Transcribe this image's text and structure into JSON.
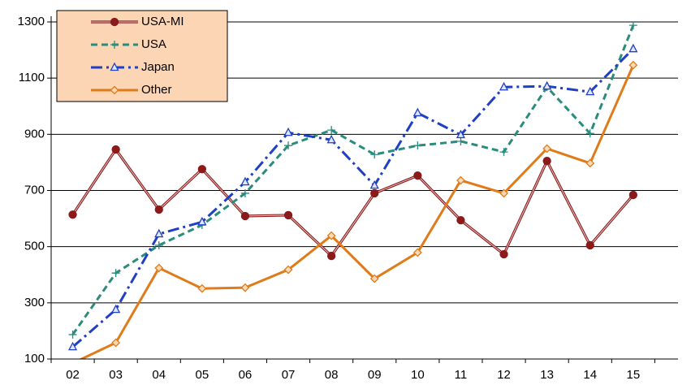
{
  "chart_data": {
    "type": "line",
    "categories": [
      "02",
      "03",
      "04",
      "05",
      "06",
      "07",
      "08",
      "09",
      "10",
      "11",
      "12",
      "13",
      "14",
      "15"
    ],
    "series": [
      {
        "name": "USA-MI",
        "color": "#8b1a1a",
        "marker": "circle",
        "dash": "solid",
        "values": [
          614,
          846,
          632,
          776,
          609,
          612,
          467,
          690,
          753,
          594,
          473,
          805,
          505,
          684
        ]
      },
      {
        "name": "USA",
        "color": "#2a8c7c",
        "marker": "plus",
        "dash": "dashed",
        "values": [
          187,
          406,
          505,
          577,
          690,
          860,
          915,
          828,
          860,
          875,
          837,
          1068,
          903,
          1288
        ]
      },
      {
        "name": "Japan",
        "color": "#1f3fc4",
        "marker": "triangle",
        "dash": "dashdot",
        "values": [
          143,
          276,
          545,
          588,
          730,
          906,
          880,
          718,
          976,
          898,
          1068,
          1071,
          1051,
          1204
        ]
      },
      {
        "name": "Other",
        "color": "#e07b1a",
        "marker": "diamond",
        "dash": "solid",
        "values": [
          85,
          158,
          424,
          351,
          354,
          418,
          539,
          386,
          479,
          736,
          690,
          849,
          797,
          1146
        ]
      }
    ],
    "ylim": [
      100,
      1300
    ],
    "yticks": [
      100,
      300,
      500,
      700,
      900,
      1100,
      1300
    ],
    "grid": true,
    "legend": "upper left"
  }
}
